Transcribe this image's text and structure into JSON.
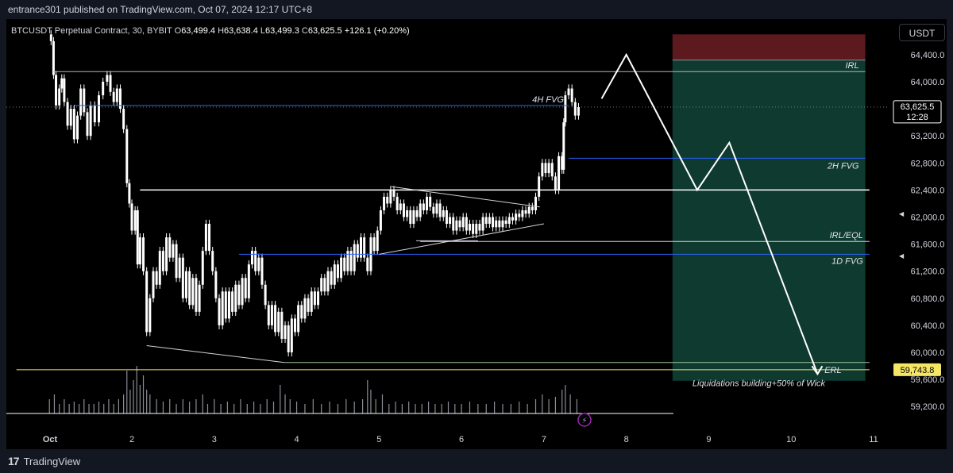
{
  "header": {
    "publish_info": "entrance301 published on TradingView.com, Oct 07, 2024 12:17 UTC+8"
  },
  "legend": {
    "symbol": "BTCUSDT Perpetual Contract, 30, BYBIT",
    "open_label": "O",
    "open": "63,499.4",
    "high_label": "H",
    "high": "63,638.4",
    "low_label": "L",
    "low": "63,499.3",
    "close_label": "C",
    "close": "63,625.5",
    "change": "+126.1 (+0.20%)"
  },
  "currency_button": "USDT",
  "footer": {
    "brand": "TradingView"
  },
  "colors": {
    "background": "#000000",
    "candle": "#ffffff",
    "fvg_line": "#2962ff",
    "erl_line": "#f5e663",
    "stop_zone": "#5c1a1e",
    "target_zone": "#0e3a30",
    "price_badge": "#f5e663"
  },
  "chart_data": {
    "type": "candlestick",
    "symbol": "BTCUSDT",
    "interval": "30",
    "exchange": "BYBIT",
    "y_axis": {
      "ticks": [
        59200,
        59600,
        60000,
        60400,
        60800,
        61200,
        61600,
        62000,
        62400,
        62800,
        63200,
        64000,
        64400
      ],
      "tick_labels": [
        "59,200.0",
        "59,600.0",
        "60,000.0",
        "60,400.0",
        "60,800.0",
        "61,200.0",
        "61,600.0",
        "62,000.0",
        "62,400.0",
        "62,800.0",
        "63,200.0",
        "64,000.0",
        "64,400.0"
      ],
      "ylim": [
        58800,
        64800
      ]
    },
    "x_axis": {
      "tick_labels": [
        "Oct",
        "2",
        "3",
        "4",
        "5",
        "6",
        "7",
        "8",
        "9",
        "10",
        "11"
      ],
      "tick_days": [
        1,
        2,
        3,
        4,
        5,
        6,
        7,
        8,
        9,
        10,
        11
      ],
      "xlim": [
        0.6,
        11.1
      ]
    },
    "current_price": {
      "value": 63625.5,
      "label": "63,625.5",
      "countdown": "12:28"
    },
    "erl_price": {
      "value": 59743.8,
      "label": "59,743.8"
    },
    "price_path": [
      [
        1.0,
        64700
      ],
      [
        1.02,
        64600
      ],
      [
        1.05,
        64100
      ],
      [
        1.08,
        63650
      ],
      [
        1.12,
        63900
      ],
      [
        1.15,
        64050
      ],
      [
        1.18,
        63700
      ],
      [
        1.22,
        63350
      ],
      [
        1.26,
        63600
      ],
      [
        1.3,
        63150
      ],
      [
        1.34,
        63500
      ],
      [
        1.38,
        63900
      ],
      [
        1.42,
        63550
      ],
      [
        1.46,
        63200
      ],
      [
        1.5,
        63650
      ],
      [
        1.55,
        63400
      ],
      [
        1.6,
        63800
      ],
      [
        1.65,
        64000
      ],
      [
        1.7,
        64100
      ],
      [
        1.74,
        63850
      ],
      [
        1.78,
        63700
      ],
      [
        1.82,
        63900
      ],
      [
        1.86,
        63600
      ],
      [
        1.9,
        63300
      ],
      [
        1.94,
        62500
      ],
      [
        1.97,
        62200
      ],
      [
        2.0,
        61800
      ],
      [
        2.04,
        62100
      ],
      [
        2.07,
        61300
      ],
      [
        2.1,
        61700
      ],
      [
        2.14,
        61200
      ],
      [
        2.18,
        60300
      ],
      [
        2.22,
        60800
      ],
      [
        2.26,
        61200
      ],
      [
        2.3,
        61000
      ],
      [
        2.34,
        61500
      ],
      [
        2.38,
        61200
      ],
      [
        2.42,
        61700
      ],
      [
        2.46,
        61400
      ],
      [
        2.5,
        61600
      ],
      [
        2.54,
        61100
      ],
      [
        2.58,
        61400
      ],
      [
        2.62,
        60800
      ],
      [
        2.66,
        61200
      ],
      [
        2.7,
        60700
      ],
      [
        2.74,
        61100
      ],
      [
        2.78,
        60600
      ],
      [
        2.82,
        61000
      ],
      [
        2.86,
        61500
      ],
      [
        2.9,
        61900
      ],
      [
        2.94,
        61500
      ],
      [
        2.98,
        61200
      ],
      [
        3.02,
        60800
      ],
      [
        3.06,
        60400
      ],
      [
        3.1,
        60900
      ],
      [
        3.14,
        60500
      ],
      [
        3.18,
        60900
      ],
      [
        3.22,
        60600
      ],
      [
        3.26,
        61000
      ],
      [
        3.3,
        60700
      ],
      [
        3.34,
        61100
      ],
      [
        3.38,
        60800
      ],
      [
        3.42,
        61300
      ],
      [
        3.46,
        61500
      ],
      [
        3.5,
        61200
      ],
      [
        3.54,
        61400
      ],
      [
        3.58,
        61000
      ],
      [
        3.62,
        60700
      ],
      [
        3.66,
        60400
      ],
      [
        3.7,
        60700
      ],
      [
        3.74,
        60300
      ],
      [
        3.78,
        60600
      ],
      [
        3.82,
        60200
      ],
      [
        3.86,
        60400
      ],
      [
        3.9,
        60000
      ],
      [
        3.94,
        60500
      ],
      [
        3.98,
        60300
      ],
      [
        4.02,
        60700
      ],
      [
        4.06,
        60500
      ],
      [
        4.1,
        60800
      ],
      [
        4.14,
        60600
      ],
      [
        4.18,
        60900
      ],
      [
        4.22,
        60700
      ],
      [
        4.26,
        60900
      ],
      [
        4.3,
        61100
      ],
      [
        4.34,
        60900
      ],
      [
        4.38,
        61200
      ],
      [
        4.42,
        61000
      ],
      [
        4.46,
        61300
      ],
      [
        4.5,
        61100
      ],
      [
        4.54,
        61400
      ],
      [
        4.58,
        61200
      ],
      [
        4.62,
        61500
      ],
      [
        4.66,
        61200
      ],
      [
        4.7,
        61600
      ],
      [
        4.74,
        61400
      ],
      [
        4.78,
        61700
      ],
      [
        4.82,
        61400
      ],
      [
        4.86,
        61200
      ],
      [
        4.9,
        61700
      ],
      [
        4.94,
        61500
      ],
      [
        4.98,
        61800
      ],
      [
        5.02,
        62100
      ],
      [
        5.06,
        62300
      ],
      [
        5.1,
        62200
      ],
      [
        5.14,
        62400
      ],
      [
        5.18,
        62300
      ],
      [
        5.22,
        62100
      ],
      [
        5.26,
        62200
      ],
      [
        5.3,
        62000
      ],
      [
        5.34,
        62100
      ],
      [
        5.38,
        61900
      ],
      [
        5.42,
        62100
      ],
      [
        5.46,
        62000
      ],
      [
        5.5,
        62200
      ],
      [
        5.54,
        62100
      ],
      [
        5.58,
        62300
      ],
      [
        5.62,
        62150
      ],
      [
        5.66,
        62050
      ],
      [
        5.7,
        62200
      ],
      [
        5.74,
        62000
      ],
      [
        5.78,
        62100
      ],
      [
        5.82,
        61900
      ],
      [
        5.86,
        62000
      ],
      [
        5.9,
        61800
      ],
      [
        5.94,
        61950
      ],
      [
        5.98,
        61850
      ],
      [
        6.02,
        62000
      ],
      [
        6.06,
        61800
      ],
      [
        6.1,
        61900
      ],
      [
        6.14,
        61750
      ],
      [
        6.18,
        61900
      ],
      [
        6.22,
        61800
      ],
      [
        6.26,
        62000
      ],
      [
        6.3,
        61900
      ],
      [
        6.34,
        62000
      ],
      [
        6.38,
        61850
      ],
      [
        6.42,
        61950
      ],
      [
        6.46,
        61850
      ],
      [
        6.5,
        61950
      ],
      [
        6.54,
        61900
      ],
      [
        6.58,
        62000
      ],
      [
        6.62,
        61950
      ],
      [
        6.66,
        62050
      ],
      [
        6.7,
        62000
      ],
      [
        6.74,
        62100
      ],
      [
        6.78,
        62050
      ],
      [
        6.82,
        62150
      ],
      [
        6.86,
        62100
      ],
      [
        6.9,
        62300
      ],
      [
        6.94,
        62600
      ],
      [
        6.98,
        62800
      ],
      [
        7.02,
        62650
      ],
      [
        7.06,
        62800
      ],
      [
        7.1,
        62600
      ],
      [
        7.14,
        62400
      ],
      [
        7.18,
        62900
      ],
      [
        7.22,
        62700
      ],
      [
        7.24,
        63400
      ],
      [
        7.26,
        63800
      ],
      [
        7.3,
        63900
      ],
      [
        7.34,
        63700
      ],
      [
        7.38,
        63500
      ],
      [
        7.42,
        63625
      ]
    ],
    "volume": [
      [
        1.0,
        0.3
      ],
      [
        1.06,
        0.4
      ],
      [
        1.12,
        0.2
      ],
      [
        1.18,
        0.3
      ],
      [
        1.24,
        0.2
      ],
      [
        1.3,
        0.25
      ],
      [
        1.36,
        0.2
      ],
      [
        1.42,
        0.3
      ],
      [
        1.48,
        0.2
      ],
      [
        1.54,
        0.2
      ],
      [
        1.6,
        0.25
      ],
      [
        1.66,
        0.2
      ],
      [
        1.72,
        0.3
      ],
      [
        1.78,
        0.2
      ],
      [
        1.84,
        0.3
      ],
      [
        1.9,
        0.4
      ],
      [
        1.94,
        0.9
      ],
      [
        1.98,
        0.5
      ],
      [
        2.02,
        0.7
      ],
      [
        2.06,
        1.0
      ],
      [
        2.1,
        0.6
      ],
      [
        2.14,
        0.8
      ],
      [
        2.18,
        0.5
      ],
      [
        2.22,
        0.4
      ],
      [
        2.3,
        0.3
      ],
      [
        2.38,
        0.25
      ],
      [
        2.46,
        0.3
      ],
      [
        2.54,
        0.2
      ],
      [
        2.62,
        0.3
      ],
      [
        2.7,
        0.25
      ],
      [
        2.78,
        0.3
      ],
      [
        2.86,
        0.4
      ],
      [
        2.92,
        0.2
      ],
      [
        3.0,
        0.3
      ],
      [
        3.08,
        0.2
      ],
      [
        3.16,
        0.25
      ],
      [
        3.24,
        0.2
      ],
      [
        3.32,
        0.3
      ],
      [
        3.4,
        0.2
      ],
      [
        3.48,
        0.25
      ],
      [
        3.56,
        0.2
      ],
      [
        3.64,
        0.3
      ],
      [
        3.72,
        0.25
      ],
      [
        3.8,
        0.6
      ],
      [
        3.86,
        0.4
      ],
      [
        3.92,
        0.3
      ],
      [
        4.0,
        0.25
      ],
      [
        4.1,
        0.2
      ],
      [
        4.2,
        0.3
      ],
      [
        4.3,
        0.2
      ],
      [
        4.4,
        0.25
      ],
      [
        4.5,
        0.2
      ],
      [
        4.6,
        0.3
      ],
      [
        4.7,
        0.25
      ],
      [
        4.8,
        0.3
      ],
      [
        4.86,
        0.7
      ],
      [
        4.9,
        0.5
      ],
      [
        4.96,
        0.3
      ],
      [
        5.04,
        0.4
      ],
      [
        5.12,
        0.2
      ],
      [
        5.2,
        0.25
      ],
      [
        5.28,
        0.2
      ],
      [
        5.36,
        0.25
      ],
      [
        5.44,
        0.2
      ],
      [
        5.52,
        0.2
      ],
      [
        5.6,
        0.25
      ],
      [
        5.68,
        0.2
      ],
      [
        5.76,
        0.2
      ],
      [
        5.84,
        0.25
      ],
      [
        5.92,
        0.2
      ],
      [
        6.0,
        0.2
      ],
      [
        6.1,
        0.25
      ],
      [
        6.2,
        0.2
      ],
      [
        6.3,
        0.2
      ],
      [
        6.4,
        0.25
      ],
      [
        6.5,
        0.2
      ],
      [
        6.6,
        0.2
      ],
      [
        6.7,
        0.25
      ],
      [
        6.8,
        0.2
      ],
      [
        6.9,
        0.3
      ],
      [
        6.98,
        0.4
      ],
      [
        7.06,
        0.3
      ],
      [
        7.14,
        0.35
      ],
      [
        7.22,
        0.5
      ],
      [
        7.26,
        0.6
      ],
      [
        7.32,
        0.4
      ],
      [
        7.4,
        0.3
      ]
    ],
    "horizontal_levels": [
      {
        "label": "IRL",
        "price": 64150,
        "x_from": 1.05,
        "x_to": 10.9,
        "color": "#b2b5be"
      },
      {
        "label": "4H FVG",
        "price": 63650,
        "x_from": 1.3,
        "x_to": 7.3,
        "color": "#2962ff"
      },
      {
        "label": "2H FVG",
        "price": 62870,
        "x_from": 7.3,
        "x_to": 10.9,
        "color": "#2962ff"
      },
      {
        "label": "",
        "price": 62400,
        "x_from": 2.1,
        "x_to": 10.95,
        "color": "#ffffff"
      },
      {
        "label": "IRL/EQL",
        "price": 61640,
        "x_from": 5.5,
        "x_to": 10.95,
        "color": "#d1d4dc"
      },
      {
        "label": "1D FVG",
        "price": 61450,
        "x_from": 3.3,
        "x_to": 10.95,
        "color": "#2962ff"
      },
      {
        "label": "",
        "price": 59850,
        "x_from": 3.85,
        "x_to": 10.95,
        "color": "#9cc89c"
      },
      {
        "label": "ERL",
        "price": 59743.8,
        "x_from": 0.6,
        "x_to": 10.95,
        "color": "#f5e663"
      }
    ],
    "position_tool": {
      "entry": 64320,
      "stop": 64700,
      "target": 59580,
      "x_from": 8.56,
      "x_to": 10.9
    },
    "projection_path": [
      [
        7.7,
        63750
      ],
      [
        8.0,
        64400
      ],
      [
        8.86,
        62400
      ],
      [
        9.25,
        63100
      ],
      [
        10.32,
        59680
      ]
    ],
    "annotations": [
      {
        "text": "Liquidations building+50% of Wick",
        "x": 10.22,
        "price": 59550
      }
    ],
    "trendlines": [
      {
        "from": [
          2.18,
          60100
        ],
        "to": [
          3.85,
          59850
        ]
      },
      {
        "from": [
          5.15,
          62450
        ],
        "to": [
          6.95,
          62150
        ]
      },
      {
        "from": [
          5.0,
          61450
        ],
        "to": [
          7.0,
          61900
        ]
      },
      {
        "from": [
          5.45,
          61650
        ],
        "to": [
          6.2,
          61650
        ]
      }
    ]
  }
}
